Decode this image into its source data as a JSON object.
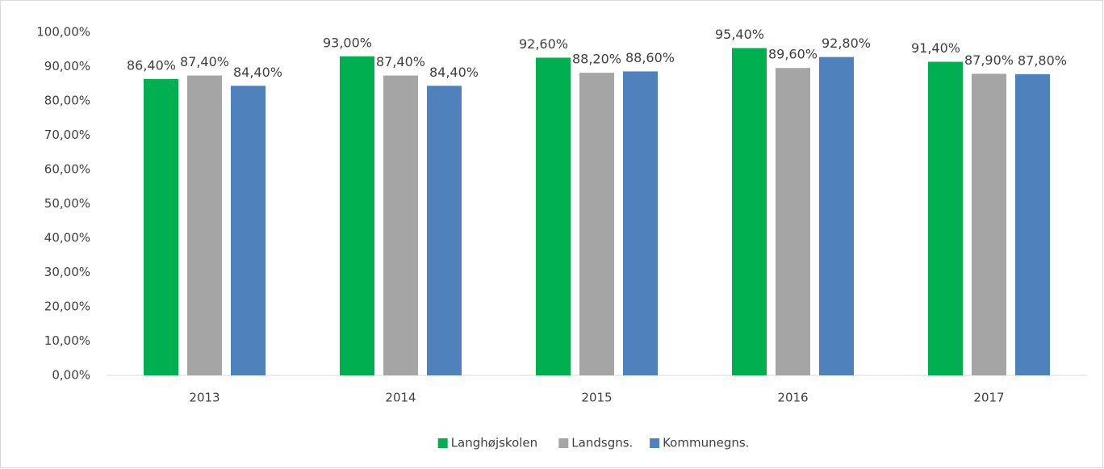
{
  "chart_data": {
    "type": "bar",
    "categories": [
      "2013",
      "2014",
      "2015",
      "2016",
      "2017"
    ],
    "series": [
      {
        "name": "Langhøjskolen",
        "color": "#00b050",
        "values": [
          86.4,
          93.0,
          92.6,
          95.4,
          91.4
        ],
        "value_labels": [
          "86,40%",
          "93,00%",
          "92,60%",
          "95,40%",
          "91,40%"
        ]
      },
      {
        "name": "Landsgns.",
        "color": "#a5a5a5",
        "values": [
          87.4,
          87.4,
          88.2,
          89.6,
          87.9
        ],
        "value_labels": [
          "87,40%",
          "87,40%",
          "88,20%",
          "89,60%",
          "87,90%"
        ]
      },
      {
        "name": "Kommunegns.",
        "color": "#4f81bd",
        "values": [
          84.4,
          84.4,
          88.6,
          92.8,
          87.8
        ],
        "value_labels": [
          "84,40%",
          "84,40%",
          "88,60%",
          "92,80%",
          "87,80%"
        ]
      }
    ],
    "ylim": [
      0,
      100
    ],
    "yticks": [
      {
        "value": 0,
        "label": "0,00%"
      },
      {
        "value": 10,
        "label": "10,00%"
      },
      {
        "value": 20,
        "label": "20,00%"
      },
      {
        "value": 30,
        "label": "30,00%"
      },
      {
        "value": 40,
        "label": "40,00%"
      },
      {
        "value": 50,
        "label": "50,00%"
      },
      {
        "value": 60,
        "label": "60,00%"
      },
      {
        "value": 70,
        "label": "70,00%"
      },
      {
        "value": 80,
        "label": "80,00%"
      },
      {
        "value": 90,
        "label": "90,00%"
      },
      {
        "value": 100,
        "label": "100,00%"
      }
    ],
    "grid": false,
    "legend": "bottom"
  }
}
